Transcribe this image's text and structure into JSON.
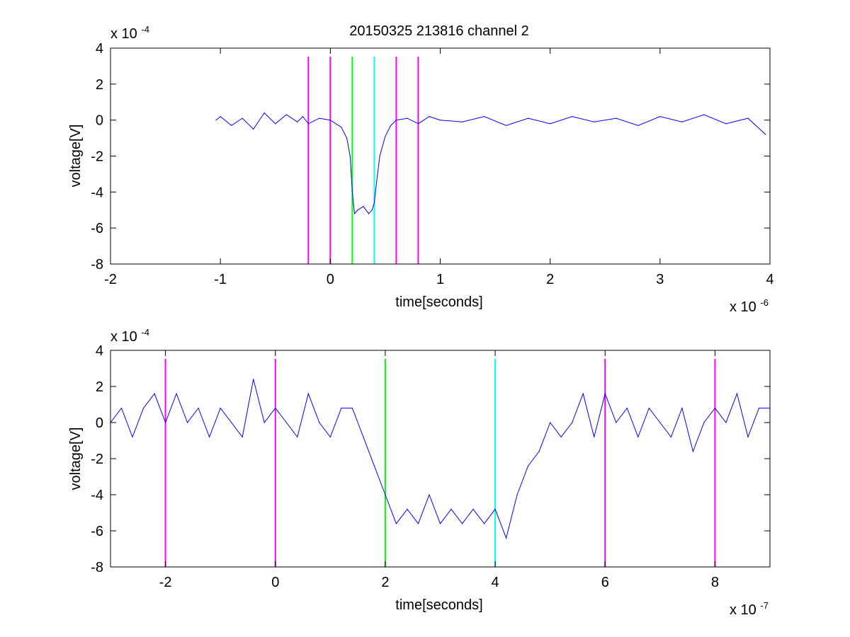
{
  "figure_title": "20150325 213816 channel 2",
  "chart_data": [
    {
      "type": "line",
      "title": "20150325 213816 channel 2",
      "xlabel": "time[seconds]",
      "ylabel": "voltage[V]",
      "x_multiplier_label": "x 10",
      "x_multiplier_exp": "-6",
      "y_multiplier_label": "x 10",
      "y_multiplier_exp": "-4",
      "xlim": [
        -2,
        4
      ],
      "ylim": [
        -8,
        4
      ],
      "xticks": [
        -2,
        -1,
        0,
        1,
        2,
        3,
        4
      ],
      "xtick_labels": [
        "-2",
        "-1",
        "0",
        "1",
        "2",
        "3",
        "4"
      ],
      "yticks": [
        -8,
        -6,
        -4,
        -2,
        0,
        2,
        4
      ],
      "ytick_labels": [
        "-8",
        "-6",
        "-4",
        "-2",
        "0",
        "2",
        "4"
      ],
      "grid": false,
      "series": [
        {
          "color": "#0000ff",
          "x": [
            -1.04,
            -1.0,
            -0.9,
            -0.8,
            -0.7,
            -0.6,
            -0.5,
            -0.4,
            -0.3,
            -0.25,
            -0.2,
            -0.1,
            0.0,
            0.1,
            0.15,
            0.18,
            0.2,
            0.22,
            0.25,
            0.3,
            0.35,
            0.38,
            0.4,
            0.42,
            0.45,
            0.5,
            0.55,
            0.6,
            0.7,
            0.8,
            0.9,
            1.0,
            1.2,
            1.4,
            1.6,
            1.8,
            2.0,
            2.2,
            2.4,
            2.6,
            2.8,
            3.0,
            3.2,
            3.4,
            3.6,
            3.8,
            3.96
          ],
          "y": [
            0.0,
            0.2,
            -0.3,
            0.1,
            -0.5,
            0.4,
            -0.2,
            0.3,
            -0.1,
            0.2,
            -0.2,
            0.1,
            0.0,
            -0.4,
            -1.0,
            -2.0,
            -4.0,
            -5.2,
            -5.0,
            -4.8,
            -5.2,
            -5.0,
            -4.6,
            -3.5,
            -2.0,
            -0.9,
            -0.3,
            0.0,
            0.1,
            -0.2,
            0.2,
            0.0,
            -0.1,
            0.2,
            -0.3,
            0.1,
            -0.2,
            0.2,
            -0.1,
            0.1,
            -0.3,
            0.2,
            -0.1,
            0.3,
            -0.2,
            0.1,
            -0.8
          ]
        }
      ],
      "vlines": [
        {
          "x": -0.2,
          "color": "#ff00ff"
        },
        {
          "x": 0.0,
          "color": "#ff00ff"
        },
        {
          "x": 0.2,
          "color": "#00ff00"
        },
        {
          "x": 0.4,
          "color": "#00ffff"
        },
        {
          "x": 0.6,
          "color": "#ff00ff"
        },
        {
          "x": 0.8,
          "color": "#ff00ff"
        }
      ]
    },
    {
      "type": "line",
      "title": "",
      "xlabel": "time[seconds]",
      "ylabel": "voltage[V]",
      "x_multiplier_label": "x 10",
      "x_multiplier_exp": "-7",
      "y_multiplier_label": "x 10",
      "y_multiplier_exp": "-4",
      "xlim": [
        -3,
        9
      ],
      "ylim": [
        -8,
        4
      ],
      "xticks": [
        -2,
        0,
        2,
        4,
        6,
        8
      ],
      "xtick_labels": [
        "-2",
        "0",
        "2",
        "4",
        "6",
        "8"
      ],
      "yticks": [
        -8,
        -6,
        -4,
        -2,
        0,
        2,
        4
      ],
      "ytick_labels": [
        "-8",
        "-6",
        "-4",
        "-2",
        "0",
        "2",
        "4"
      ],
      "grid": false,
      "series": [
        {
          "color": "#0000ff",
          "x": [
            -3.0,
            -2.8,
            -2.6,
            -2.4,
            -2.2,
            -2.0,
            -1.8,
            -1.6,
            -1.4,
            -1.2,
            -1.0,
            -0.8,
            -0.6,
            -0.4,
            -0.2,
            0.0,
            0.2,
            0.4,
            0.6,
            0.8,
            1.0,
            1.2,
            1.4,
            1.6,
            1.8,
            2.0,
            2.2,
            2.4,
            2.6,
            2.8,
            3.0,
            3.2,
            3.4,
            3.6,
            3.8,
            4.0,
            4.2,
            4.4,
            4.6,
            4.8,
            5.0,
            5.2,
            5.4,
            5.6,
            5.8,
            6.0,
            6.2,
            6.4,
            6.6,
            6.8,
            7.0,
            7.2,
            7.4,
            7.6,
            7.8,
            8.0,
            8.2,
            8.4,
            8.6,
            8.8,
            9.0
          ],
          "y": [
            0.0,
            0.8,
            -0.8,
            0.8,
            1.6,
            0.0,
            1.6,
            0.0,
            0.8,
            -0.8,
            0.8,
            0.0,
            -0.8,
            2.4,
            0.0,
            0.8,
            0.0,
            -0.8,
            1.6,
            0.0,
            -0.8,
            0.8,
            0.8,
            -0.8,
            -2.4,
            -4.0,
            -5.6,
            -4.8,
            -5.6,
            -4.0,
            -5.6,
            -4.8,
            -5.6,
            -4.8,
            -5.6,
            -4.8,
            -6.4,
            -4.0,
            -2.4,
            -1.6,
            0.0,
            -0.8,
            0.0,
            1.6,
            -0.8,
            1.6,
            0.0,
            0.8,
            -0.8,
            0.8,
            0.0,
            -0.8,
            0.8,
            -1.6,
            0.0,
            0.8,
            0.0,
            1.6,
            -0.8,
            0.8,
            0.8
          ]
        }
      ],
      "vlines": [
        {
          "x": -2,
          "color": "#ff00ff"
        },
        {
          "x": 0,
          "color": "#ff00ff"
        },
        {
          "x": 2,
          "color": "#00ff00"
        },
        {
          "x": 4,
          "color": "#00ffff"
        },
        {
          "x": 6,
          "color": "#ff00ff"
        },
        {
          "x": 8,
          "color": "#ff00ff"
        }
      ]
    }
  ]
}
